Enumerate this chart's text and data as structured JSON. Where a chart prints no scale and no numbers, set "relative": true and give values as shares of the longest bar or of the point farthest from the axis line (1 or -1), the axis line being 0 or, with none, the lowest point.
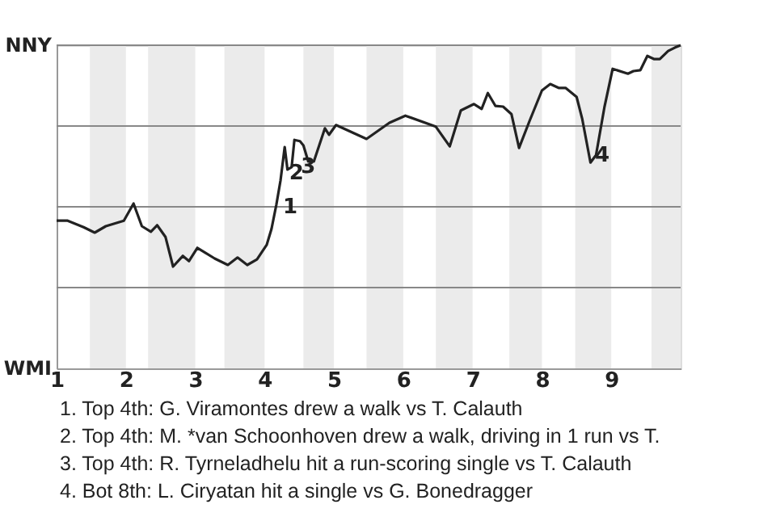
{
  "chart_data": {
    "type": "line",
    "relative": true,
    "x": [
      1,
      1.16,
      1.39,
      1.55,
      1.71,
      1.97,
      2.11,
      2.23,
      2.36,
      2.45,
      2.57,
      2.68,
      2.82,
      2.91,
      3.03,
      3.28,
      3.47,
      3.61,
      3.75,
      3.89,
      4.03,
      4.1,
      4.17,
      4.23,
      4.29,
      4.33,
      4.39,
      4.43,
      4.51,
      4.56,
      4.63,
      4.71,
      4.87,
      4.93,
      5.03,
      5.47,
      5.8,
      6.03,
      6.47,
      6.67,
      6.83,
      7.02,
      7.13,
      7.22,
      7.33,
      7.44,
      7.56,
      7.67,
      7.82,
      8,
      8.12,
      8.24,
      8.34,
      8.5,
      8.58,
      8.7,
      8.78,
      8.9,
      9.02,
      9.24,
      9.32,
      9.42,
      9.52,
      9.62,
      9.7,
      9.82,
      9.92,
      10
    ],
    "series": [
      {
        "color": "#222222",
        "values": [
          0.457,
          0.457,
          0.437,
          0.42,
          0.44,
          0.457,
          0.51,
          0.44,
          0.423,
          0.443,
          0.407,
          0.315,
          0.348,
          0.332,
          0.373,
          0.34,
          0.32,
          0.343,
          0.32,
          0.337,
          0.382,
          0.432,
          0.507,
          0.582,
          0.685,
          0.615,
          0.623,
          0.707,
          0.703,
          0.69,
          0.64,
          0.64,
          0.743,
          0.723,
          0.753,
          0.71,
          0.76,
          0.782,
          0.748,
          0.687,
          0.798,
          0.818,
          0.803,
          0.852,
          0.812,
          0.81,
          0.787,
          0.682,
          0.765,
          0.86,
          0.88,
          0.868,
          0.868,
          0.84,
          0.773,
          0.637,
          0.66,
          0.807,
          0.927,
          0.912,
          0.92,
          0.923,
          0.967,
          0.957,
          0.957,
          0.982,
          0.993,
          1
        ]
      }
    ],
    "xlim": [
      1,
      10
    ],
    "xticks": [
      1,
      2,
      3,
      4,
      5,
      6,
      7,
      8,
      9
    ],
    "ref_lines": [
      {
        "axis": "y",
        "value": 0.25,
        "color": "#888888"
      },
      {
        "axis": "y",
        "value": 0.5,
        "color": "#888888"
      },
      {
        "axis": "y",
        "value": 0.75,
        "color": "#888888"
      },
      {
        "axis": "y",
        "value": 1,
        "color": "#888888"
      }
    ],
    "bands": [
      {
        "axis": "x",
        "from": 1.48,
        "to": 2,
        "color": "#ebebeb"
      },
      {
        "axis": "x",
        "from": 2.32,
        "to": 3,
        "color": "#ebebeb"
      },
      {
        "axis": "x",
        "from": 3.42,
        "to": 4,
        "color": "#ebebeb"
      },
      {
        "axis": "x",
        "from": 4.56,
        "to": 5,
        "color": "#ebebeb"
      },
      {
        "axis": "x",
        "from": 5.47,
        "to": 6,
        "color": "#ebebeb"
      },
      {
        "axis": "x",
        "from": 6.47,
        "to": 7,
        "color": "#ebebeb"
      },
      {
        "axis": "x",
        "from": 7.53,
        "to": 8,
        "color": "#ebebeb"
      },
      {
        "axis": "x",
        "from": 8.48,
        "to": 9,
        "color": "#ebebeb"
      },
      {
        "axis": "x",
        "from": 9.58,
        "to": 10,
        "color": "#ebebeb"
      }
    ],
    "annotations": [
      "NNY",
      "WMI",
      {
        "text": "1",
        "x": 4.24,
        "y": 0.5
      },
      {
        "text": "2",
        "x": 4.33,
        "y": 0.605
      },
      {
        "text": "3",
        "x": 4.5,
        "y": 0.625
      },
      {
        "text": "4",
        "x": 8.74,
        "y": 0.66
      },
      "1. Top 4th: G. Viramontes drew a walk vs T. Calauth",
      "2. Top 4th: M. *van Schoonhoven drew a walk, driving in 1 run vs T.",
      "3. Top 4th: R. Tyrneladhelu hit a run-scoring single vs T. Calauth",
      "4. Bot 8th: L. Ciryatan hit a single vs G. Bonedragger"
    ]
  }
}
